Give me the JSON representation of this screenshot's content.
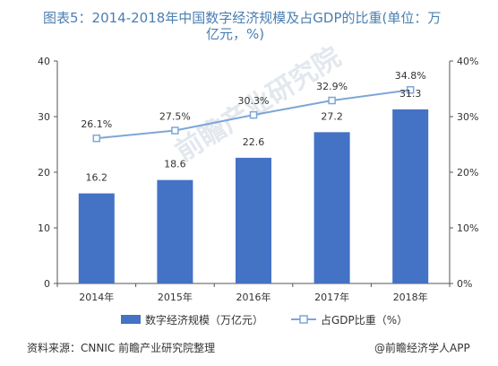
{
  "chart_data": {
    "type": "bar",
    "title_line1": "图表5：2014-2018年中国数字经济规模及占GDP的比重(单位：万",
    "title_line2": "亿元，%)",
    "categories": [
      "2014年",
      "2015年",
      "2016年",
      "2017年",
      "2018年"
    ],
    "series": [
      {
        "name": "数字经济规模（万亿元）",
        "type": "bar",
        "axis": "left",
        "values": [
          16.2,
          18.6,
          22.6,
          27.2,
          31.3
        ],
        "labels": [
          "16.2",
          "18.6",
          "22.6",
          "27.2",
          "31.3"
        ]
      },
      {
        "name": "占GDP比重（%）",
        "type": "line",
        "axis": "right",
        "values": [
          26.1,
          27.5,
          30.3,
          32.9,
          34.8
        ],
        "labels": [
          "26.1%",
          "27.5%",
          "30.3%",
          "32.9%",
          "34.8%"
        ]
      }
    ],
    "ylim_left": [
      0,
      40
    ],
    "yticks_left": [
      "0",
      "10",
      "20",
      "30",
      "40"
    ],
    "ylim_right": [
      0,
      40
    ],
    "yticks_right": [
      "0%",
      "10%",
      "20%",
      "30%",
      "40%"
    ],
    "grid": false,
    "legend_position": "bottom",
    "colors": {
      "bar": "#4472c4",
      "line": "#7ea6d8",
      "marker_fill": "#ffffff",
      "title": "#4a7fb0"
    }
  },
  "source": "资料来源：CNNIC 前瞻产业研究院整理",
  "credit": "@前瞻经济学人APP",
  "watermark": "前瞻产业研究院"
}
